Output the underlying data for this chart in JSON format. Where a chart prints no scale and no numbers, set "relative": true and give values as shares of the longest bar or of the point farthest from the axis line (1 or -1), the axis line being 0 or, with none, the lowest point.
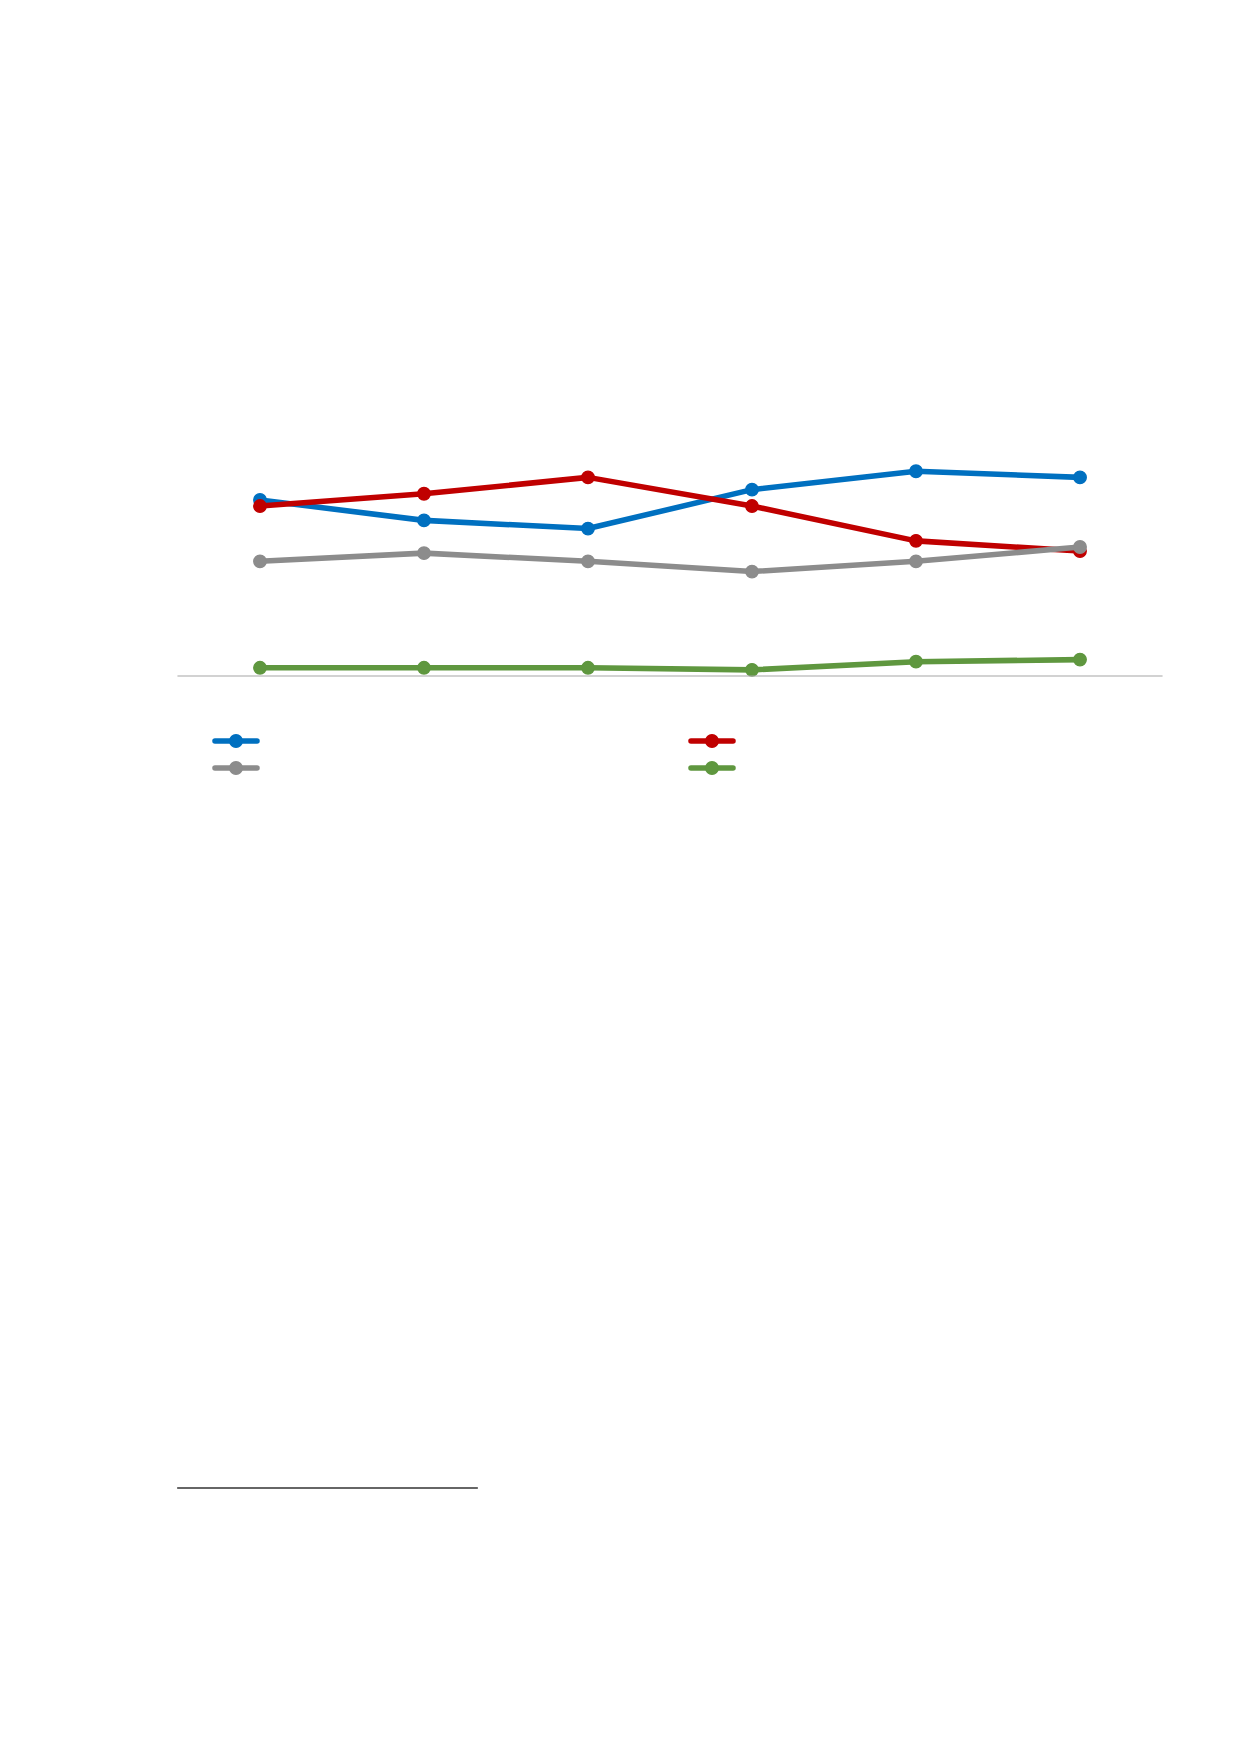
{
  "chart_data": {
    "type": "line",
    "relative": true,
    "categories": [
      null,
      null,
      null,
      null,
      null,
      null
    ],
    "marker": "circle",
    "line_style": "solid",
    "grid": false,
    "series": [
      {
        "color": "#0070c0",
        "values": [
          0.86,
          0.76,
          0.72,
          0.91,
          1,
          0.97
        ]
      },
      {
        "color": "#c00000",
        "values": [
          0.83,
          0.89,
          0.97,
          0.83,
          0.66,
          0.61
        ]
      },
      {
        "color": "#8c8c8c",
        "values": [
          0.56,
          0.6,
          0.56,
          0.51,
          0.56,
          0.63
        ]
      },
      {
        "color": "#5f973f",
        "values": [
          0.04,
          0.04,
          0.04,
          0.03,
          0.07,
          0.08
        ]
      }
    ]
  }
}
